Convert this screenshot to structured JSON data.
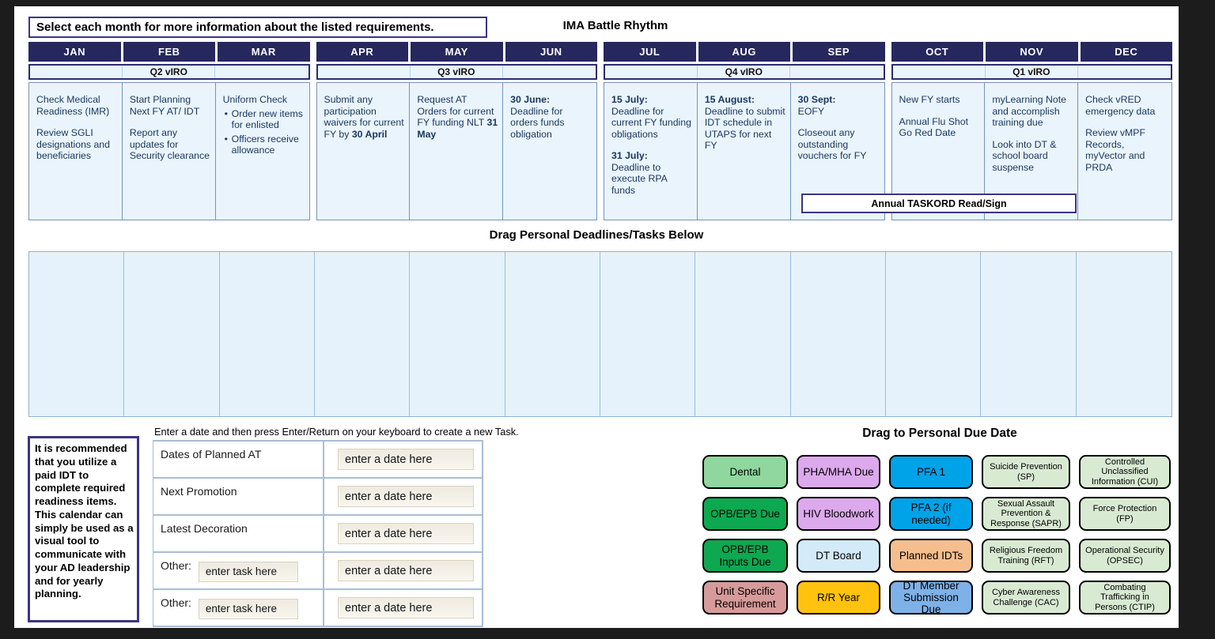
{
  "header": {
    "instruction": "Select each month for more information about the listed requirements.",
    "title": "IMA Battle Rhythm"
  },
  "calendar": {
    "taskord_banner": "Annual TASKORD Read/Sign",
    "quarters": [
      {
        "label": "Q2 vIRO",
        "months": [
          {
            "name": "JAN",
            "blocks": [
              {
                "s": [
                  {
                    "t": "Check Medical Readiness (IMR)"
                  }
                ]
              },
              {
                "s": [
                  {
                    "t": "Review SGLI designations and beneficiaries"
                  }
                ]
              }
            ]
          },
          {
            "name": "FEB",
            "blocks": [
              {
                "s": [
                  {
                    "t": "Start Planning Next FY AT/ IDT"
                  }
                ]
              },
              {
                "s": [
                  {
                    "t": "Report any updates for Security clearance"
                  }
                ]
              }
            ]
          },
          {
            "name": "MAR",
            "blocks": [
              {
                "s": [
                  {
                    "t": "Uniform Check"
                  }
                ]
              },
              {
                "b": true,
                "s": [
                  {
                    "t": "Order new items for enlisted"
                  }
                ]
              },
              {
                "b": true,
                "s": [
                  {
                    "t": "Officers receive allowance"
                  }
                ]
              }
            ]
          }
        ]
      },
      {
        "label": "Q3 vIRO",
        "months": [
          {
            "name": "APR",
            "blocks": [
              {
                "s": [
                  {
                    "t": "Submit any participation waivers for current FY by "
                  },
                  {
                    "t": "30 April",
                    "bold": true
                  }
                ]
              }
            ]
          },
          {
            "name": "MAY",
            "blocks": [
              {
                "s": [
                  {
                    "t": "Request AT Orders for current FY funding NLT "
                  },
                  {
                    "t": "31 May",
                    "bold": true
                  }
                ]
              }
            ]
          },
          {
            "name": "JUN",
            "blocks": [
              {
                "s": [
                  {
                    "t": "30 June:",
                    "bold": true
                  },
                  {
                    "t": "\nDeadline for orders funds obligation"
                  }
                ]
              }
            ]
          }
        ]
      },
      {
        "label": "Q4 vIRO",
        "months": [
          {
            "name": "JUL",
            "blocks": [
              {
                "s": [
                  {
                    "t": "15 July:",
                    "bold": true
                  },
                  {
                    "t": "\nDeadline for current FY funding obligations"
                  }
                ]
              },
              {
                "s": [
                  {
                    "t": "31 July:",
                    "bold": true
                  },
                  {
                    "t": "\nDeadline to execute RPA funds"
                  }
                ]
              }
            ]
          },
          {
            "name": "AUG",
            "blocks": [
              {
                "s": [
                  {
                    "t": "15 August:",
                    "bold": true
                  },
                  {
                    "t": "\nDeadline to submit IDT schedule in UTAPS for next FY"
                  }
                ]
              }
            ]
          },
          {
            "name": "SEP",
            "blocks": [
              {
                "s": [
                  {
                    "t": "30 Sept:",
                    "bold": true
                  },
                  {
                    "t": "\nEOFY"
                  }
                ]
              },
              {
                "s": [
                  {
                    "t": "Closeout any outstanding vouchers for FY"
                  }
                ]
              }
            ]
          }
        ]
      },
      {
        "label": "Q1 vIRO",
        "months": [
          {
            "name": "OCT",
            "blocks": [
              {
                "s": [
                  {
                    "t": "New FY starts"
                  }
                ]
              },
              {
                "s": [
                  {
                    "t": "Annual Flu Shot Go Red Date"
                  }
                ]
              }
            ]
          },
          {
            "name": "NOV",
            "blocks": [
              {
                "s": [
                  {
                    "t": "myLearning Note and accomplish training due"
                  }
                ]
              },
              {
                "s": [
                  {
                    "t": "Look into DT & school board suspense"
                  }
                ]
              }
            ]
          },
          {
            "name": "DEC",
            "blocks": [
              {
                "s": [
                  {
                    "t": "Check vRED emergency data"
                  }
                ]
              },
              {
                "s": [
                  {
                    "t": "Review vMPF Records, myVector and PRDA"
                  }
                ]
              }
            ]
          }
        ]
      }
    ]
  },
  "drag_section": {
    "title": "Drag Personal Deadlines/Tasks Below",
    "columns": 12
  },
  "sidebar_note": "It is recommended that you utilize a paid IDT to complete required readiness items. This calendar can simply be used as a visual tool to communicate with your AD leadership and for yearly planning.",
  "task_entry": {
    "instruction": "Enter a date and then press Enter/Return on your keyboard to create a new Task.",
    "date_placeholder": "enter a date here",
    "task_placeholder": "enter task here",
    "rows": [
      {
        "label": "Dates of Planned AT",
        "has_task_input": false
      },
      {
        "label": "Next Promotion",
        "has_task_input": false
      },
      {
        "label": "Latest Decoration",
        "has_task_input": false
      },
      {
        "label": "Other:",
        "has_task_input": true
      },
      {
        "label": "Other:",
        "has_task_input": true
      }
    ]
  },
  "due_dates": {
    "title": "Drag to Personal Due Date",
    "chips": [
      {
        "label": "Dental",
        "color": "#8FD79E"
      },
      {
        "label": "PHA/MHA Due",
        "color": "#DCA9EC"
      },
      {
        "label": "PFA 1",
        "color": "#00A2E8"
      },
      {
        "label": "Suicide Prevention (SP)",
        "color": "#D9EAD3"
      },
      {
        "label": "Controlled Unclassified Information (CUI)",
        "color": "#D9EAD3"
      },
      {
        "label": "OPB/EPB Due",
        "color": "#0EA850"
      },
      {
        "label": "HIV Bloodwork",
        "color": "#DCA9EC"
      },
      {
        "label": "PFA 2 (if needed)",
        "color": "#00A2E8"
      },
      {
        "label": "Sexual Assault Prevention & Response (SAPR)",
        "color": "#D9EAD3"
      },
      {
        "label": "Force Protection (FP)",
        "color": "#D9EAD3"
      },
      {
        "label": "OPB/EPB Inputs Due",
        "color": "#0EA850"
      },
      {
        "label": "DT Board",
        "color": "#D3EAF8"
      },
      {
        "label": "Planned IDTs",
        "color": "#F6BE8E"
      },
      {
        "label": "Religious Freedom Training (RFT)",
        "color": "#D9EAD3"
      },
      {
        "label": "Operational Security (OPSEC)",
        "color": "#D9EAD3"
      },
      {
        "label": "Unit Specific Requirement",
        "color": "#D79A9A"
      },
      {
        "label": "R/R Year",
        "color": "#FFC20E"
      },
      {
        "label": "DT Member Submission Due",
        "color": "#7EB1E8"
      },
      {
        "label": "Cyber Awareness Challenge (CAC)",
        "color": "#D9EAD3"
      },
      {
        "label": "Combating Trafficking in Persons (CTIP)",
        "color": "#D9EAD3"
      }
    ]
  }
}
